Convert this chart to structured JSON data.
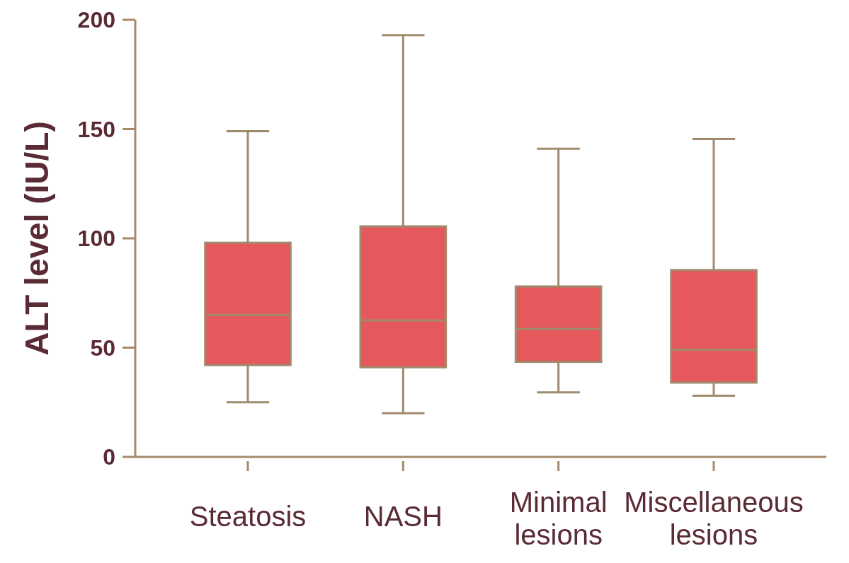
{
  "chart_data": {
    "type": "box",
    "ylabel": "ALT level (IU/L)",
    "categories": [
      "Steatosis",
      "NASH",
      "Minimal lesions",
      "Miscellaneous lesions"
    ],
    "boxes": [
      {
        "low": 25,
        "q1": 42,
        "median": 65,
        "q3": 98,
        "high": 149
      },
      {
        "low": 20,
        "q1": 41,
        "median": 62.5,
        "q3": 105.5,
        "high": 193
      },
      {
        "low": 29.5,
        "q1": 43.5,
        "median": 58.5,
        "q3": 78,
        "high": 141
      },
      {
        "low": 28,
        "q1": 34,
        "median": 49,
        "q3": 85.5,
        "high": 145.5
      }
    ],
    "color": "#e5585b",
    "ylim": [
      0,
      200
    ],
    "yticks": [
      0,
      50,
      100,
      150,
      200
    ],
    "grid": false
  }
}
